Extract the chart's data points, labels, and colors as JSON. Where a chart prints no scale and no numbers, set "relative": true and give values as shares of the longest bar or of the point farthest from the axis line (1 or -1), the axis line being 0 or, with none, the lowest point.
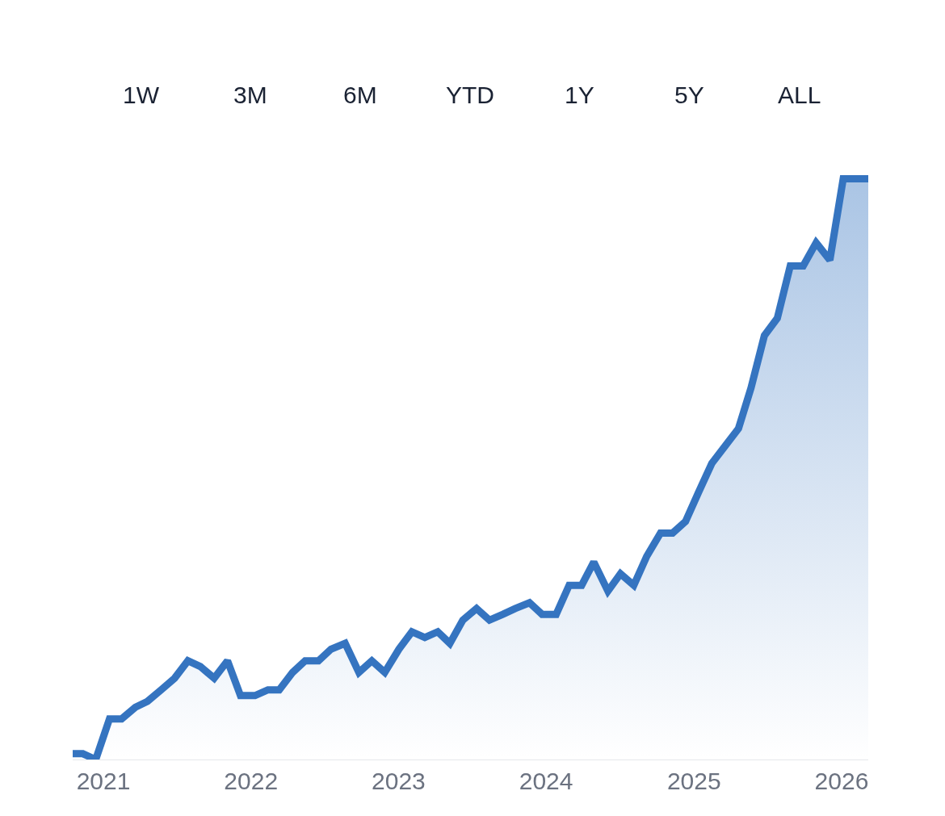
{
  "chart_data": {
    "type": "area",
    "relative": true,
    "color": "#3574c0",
    "annotations": [
      "1W",
      "3M",
      "6M",
      "YTD",
      "1Y",
      "5Y",
      "ALL"
    ],
    "x": [
      "2020-10-17",
      "2020-11-11",
      "2020-12-13",
      "2021-01-16",
      "2021-02-15",
      "2021-03-21",
      "2021-04-20",
      "2021-05-24",
      "2021-06-26",
      "2021-07-29",
      "2021-08-29",
      "2021-10-02",
      "2021-11-04",
      "2021-12-06",
      "2022-01-11",
      "2022-02-12",
      "2022-03-12",
      "2022-04-14",
      "2022-05-15",
      "2022-06-17",
      "2022-07-18",
      "2022-08-22",
      "2022-09-25",
      "2022-10-27",
      "2022-11-28",
      "2023-01-02",
      "2023-02-03",
      "2023-03-07",
      "2023-04-08",
      "2023-05-08",
      "2023-06-09",
      "2023-07-13",
      "2023-08-14",
      "2023-09-16",
      "2023-10-17",
      "2023-11-21",
      "2023-12-22",
      "2024-01-26",
      "2024-02-27",
      "2024-03-29",
      "2024-04-28",
      "2024-06-02",
      "2024-07-03",
      "2024-08-05",
      "2024-09-06",
      "2024-10-10",
      "2024-11-09",
      "2024-12-11",
      "2025-01-12",
      "2025-02-14",
      "2025-03-19",
      "2025-04-21",
      "2025-05-22",
      "2025-06-24",
      "2025-07-26",
      "2025-08-27",
      "2025-09-28",
      "2025-10-30",
      "2025-12-03",
      "2026-01-05",
      "2026-02-04",
      "2026-03-08"
    ],
    "values": [
      0.01,
      0.01,
      0,
      0.07,
      0.07,
      0.09,
      0.1,
      0.12,
      0.14,
      0.17,
      0.16,
      0.14,
      0.17,
      0.11,
      0.11,
      0.12,
      0.12,
      0.15,
      0.17,
      0.17,
      0.19,
      0.2,
      0.15,
      0.17,
      0.15,
      0.19,
      0.22,
      0.21,
      0.22,
      0.2,
      0.24,
      0.26,
      0.24,
      0.25,
      0.26,
      0.27,
      0.25,
      0.25,
      0.3,
      0.3,
      0.34,
      0.29,
      0.32,
      0.3,
      0.35,
      0.39,
      0.39,
      0.41,
      0.46,
      0.51,
      0.54,
      0.57,
      0.64,
      0.73,
      0.76,
      0.85,
      0.85,
      0.89,
      0.86,
      1.0,
      1.0,
      1.0
    ],
    "xlim": [
      "2020-10-17",
      "2026-03-08"
    ],
    "xticks": [
      "2021",
      "2022",
      "2023",
      "2024",
      "2025",
      "2026"
    ],
    "legend": false,
    "marker": "none",
    "line_style": "solid"
  }
}
